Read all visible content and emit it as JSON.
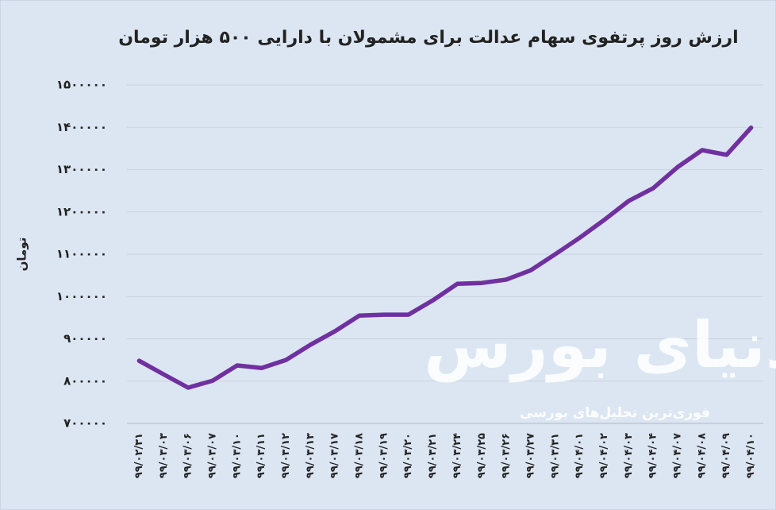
{
  "chart_data": {
    "type": "line",
    "title": "ارزش روز پرتفوی سهام عدالت برای مشمولان با دارایی ۵۰۰ هزار تومان",
    "y_label": "تومان",
    "watermark": "دنیای بورس",
    "watermark_subtitle": "فوری‌ترین تحلیل‌های بورسی",
    "categories": [
      "۹۹/۰۲/۳۱",
      "۹۹/۰۳/۰۳",
      "۹۹/۰۳/۰۶",
      "۹۹/۰۳/۰۷",
      "۹۹/۰۳/۱۰",
      "۹۹/۰۳/۱۱",
      "۹۹/۰۳/۱۲",
      "۹۹/۰۳/۱۳",
      "۹۹/۰۳/۱۷",
      "۹۹/۰۳/۱۸",
      "۹۹/۰۳/۱۹",
      "۹۹/۰۳/۲۰",
      "۹۹/۰۳/۲۱",
      "۹۹/۰۳/۲۴",
      "۹۹/۰۳/۲۵",
      "۹۹/۰۳/۲۶",
      "۹۹/۰۳/۲۷",
      "۹۹/۰۳/۳۱",
      "۹۹/۰۴/۰۱",
      "۹۹/۰۴/۰۲",
      "۹۹/۰۴/۰۳",
      "۹۹/۰۴/۰۴",
      "۹۹/۰۴/۰۷",
      "۹۹/۰۴/۰۸",
      "۹۹/۰۴/۰۹",
      "۹۹/۰۴/۱۰"
    ],
    "values": [
      848000,
      816000,
      784500,
      801000,
      837000,
      831000,
      850000,
      886000,
      918000,
      955000,
      957000,
      957000,
      991000,
      1030000,
      1032000,
      1040000,
      1062000,
      1100000,
      1139000,
      1181000,
      1226000,
      1256000,
      1306000,
      1346000,
      1335000,
      1399000
    ],
    "color": "#7030a0",
    "ylim": [
      700000,
      1500000
    ],
    "yticks": [
      {
        "value": 700000,
        "label": "۷۰۰۰۰۰"
      },
      {
        "value": 800000,
        "label": "۸۰۰۰۰۰"
      },
      {
        "value": 900000,
        "label": "۹۰۰۰۰۰"
      },
      {
        "value": 1000000,
        "label": "۱۰۰۰۰۰۰"
      },
      {
        "value": 1100000,
        "label": "۱۱۰۰۰۰۰"
      },
      {
        "value": 1200000,
        "label": "۱۲۰۰۰۰۰"
      },
      {
        "value": 1300000,
        "label": "۱۳۰۰۰۰۰"
      },
      {
        "value": 1400000,
        "label": "۱۴۰۰۰۰۰"
      },
      {
        "value": 1500000,
        "label": "۱۵۰۰۰۰۰"
      }
    ],
    "grid": true
  }
}
